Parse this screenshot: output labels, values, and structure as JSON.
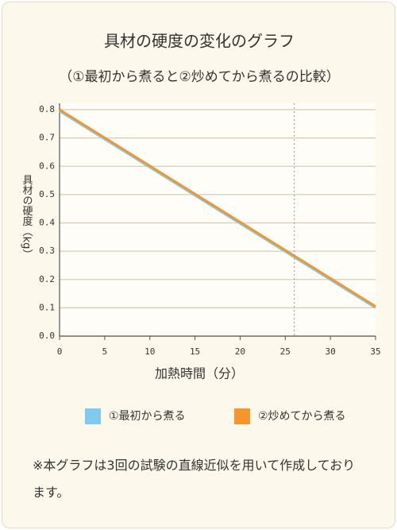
{
  "chart_data": {
    "type": "line",
    "title": "具材の硬度の変化のグラフ",
    "subtitle": "（①最初から煮ると②炒めてから煮るの比較）",
    "y_label": "具材の硬度（kg）",
    "x_label": "加熱時間（分）",
    "x": [
      0,
      35
    ],
    "series": [
      {
        "name": "①最初から煮る",
        "color": "#7ecbef",
        "values": [
          0.795,
          0.1
        ]
      },
      {
        "name": "②炒めてから煮る",
        "color": "#f5962a",
        "values": [
          0.8,
          0.105
        ]
      }
    ],
    "xlim": [
      0,
      35
    ],
    "xticks": [
      0,
      5,
      10,
      15,
      20,
      25,
      30,
      35
    ],
    "ylim": [
      0,
      0.8
    ],
    "yticks": [
      {
        "value": 0,
        "label": "0.0"
      },
      0.1,
      0.2,
      0.3,
      0.4,
      0.5,
      0.6,
      0.7,
      0.8
    ],
    "grid": true,
    "vline": 26,
    "legend": "bottom",
    "note": "※本グラフは3回の試験の直線近似を用いて作成しております。"
  }
}
